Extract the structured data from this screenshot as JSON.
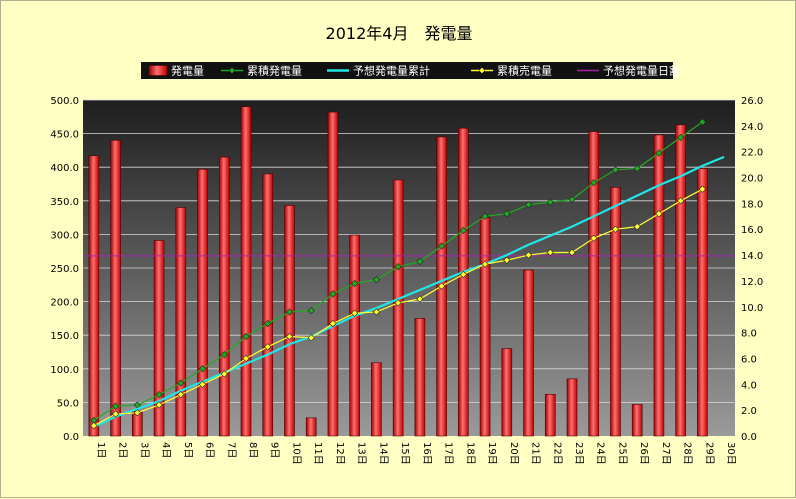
{
  "chart_data": {
    "type": "bar",
    "title": "2012年4月　発電量",
    "categories": [
      "1日",
      "2日",
      "3日",
      "4日",
      "5日",
      "6日",
      "7日",
      "8日",
      "9日",
      "10日",
      "11日",
      "12日",
      "13日",
      "14日",
      "15日",
      "16日",
      "17日",
      "18日",
      "19日",
      "20日",
      "21日",
      "22日",
      "23日",
      "24日",
      "25日",
      "26日",
      "27日",
      "28日",
      "29日",
      "30日"
    ],
    "left_axis": {
      "ylim": [
        0,
        500
      ],
      "ticks": [
        "0.0",
        "50.0",
        "100.0",
        "150.0",
        "200.0",
        "250.0",
        "300.0",
        "350.0",
        "400.0",
        "450.0",
        "500.0"
      ]
    },
    "right_axis": {
      "ylim": [
        0,
        26
      ],
      "ticks": [
        "0.0",
        "2.0",
        "4.0",
        "6.0",
        "8.0",
        "10.0",
        "12.0",
        "14.0",
        "16.0",
        "18.0",
        "20.0",
        "22.0",
        "24.0",
        "26.0"
      ]
    },
    "series": [
      {
        "name": "発電量",
        "type": "bar",
        "axis": "left",
        "color": "#ff2020",
        "values": [
          417,
          440,
          37,
          291,
          340,
          397,
          415,
          490,
          390,
          343,
          27,
          482,
          299,
          109,
          381,
          175,
          445,
          458,
          325,
          130,
          247,
          62,
          85,
          453,
          370,
          47,
          448,
          463,
          398,
          null
        ]
      },
      {
        "name": "累積発電量",
        "type": "line",
        "axis": "right",
        "color": "#22aa22",
        "marker": "diamond",
        "values": [
          1.2,
          2.3,
          2.4,
          3.2,
          4.1,
          5.2,
          6.3,
          7.7,
          8.7,
          9.6,
          9.7,
          11.0,
          11.8,
          12.1,
          13.1,
          13.5,
          14.7,
          15.9,
          17.0,
          17.2,
          17.9,
          18.1,
          18.3,
          19.6,
          20.6,
          20.7,
          21.9,
          23.1,
          24.3,
          null
        ]
      },
      {
        "name": "予想発電量累計",
        "type": "line",
        "axis": "right",
        "color": "#22e5e5",
        "values": [
          0.7,
          1.5,
          2.1,
          2.7,
          3.5,
          4.2,
          4.9,
          5.6,
          6.3,
          7.1,
          7.7,
          8.5,
          9.3,
          9.9,
          10.6,
          11.3,
          12.0,
          12.7,
          13.3,
          14.0,
          14.8,
          15.5,
          16.2,
          17.0,
          17.8,
          18.6,
          19.4,
          20.1,
          20.9,
          21.6
        ]
      },
      {
        "name": "累積売電量",
        "type": "line",
        "axis": "right",
        "color": "#ffff30",
        "marker": "diamond",
        "values": [
          0.8,
          1.7,
          1.8,
          2.4,
          3.2,
          4.0,
          4.8,
          6.0,
          6.9,
          7.7,
          7.6,
          8.7,
          9.5,
          9.6,
          10.3,
          10.6,
          11.6,
          12.5,
          13.3,
          13.6,
          14.0,
          14.2,
          14.2,
          15.3,
          16.0,
          16.2,
          17.2,
          18.2,
          19.1,
          null
        ]
      },
      {
        "name": "予想発電量日割",
        "type": "hline",
        "axis": "left",
        "color": "#aa22aa",
        "value": 268
      }
    ]
  }
}
